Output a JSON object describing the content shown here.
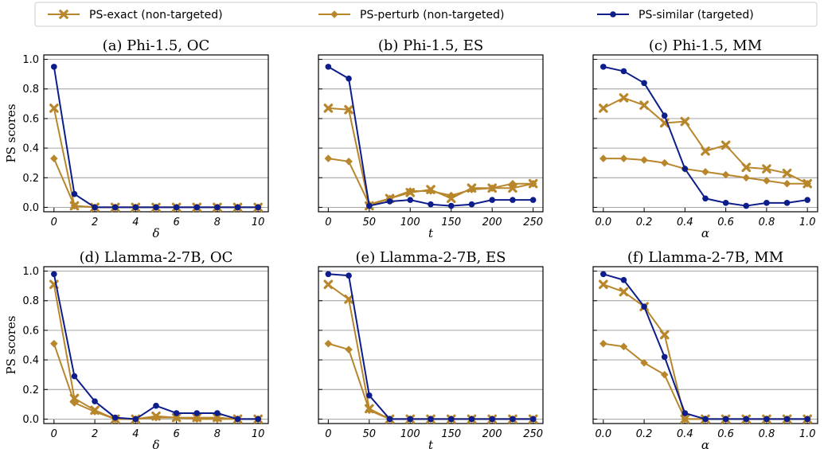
{
  "legend": [
    {
      "label": "PS-exact (non-targeted)",
      "color": "#b8862b",
      "marker": "x"
    },
    {
      "label": "PS-perturb (non-targeted)",
      "color": "#b8862b",
      "marker": "diamond"
    },
    {
      "label": "PS-similar (targeted)",
      "color": "#0d1d8a",
      "marker": "circle"
    }
  ],
  "colors": {
    "exact": "#b8862b",
    "perturb": "#b8862b",
    "similar": "#0d1d8a",
    "grid": "#999999"
  },
  "chart_data": [
    {
      "type": "line",
      "title": "(a) Phi-1.5, OC",
      "xlabel": "δ",
      "ylabel": "PS scores",
      "x": [
        0,
        1,
        2,
        3,
        4,
        5,
        6,
        7,
        8,
        9,
        10
      ],
      "xticks": [
        0,
        2,
        4,
        6,
        8,
        10
      ],
      "xtick_labels": [
        "0",
        "2",
        "4",
        "6",
        "8",
        "10"
      ],
      "xlim": [
        -0.5,
        10.5
      ],
      "ylim": [
        0,
        1.0
      ],
      "yticks": [
        0.0,
        0.2,
        0.4,
        0.6,
        0.8,
        1.0
      ],
      "ytick_labels": [
        "0.0",
        "0.2",
        "0.4",
        "0.6",
        "0.8",
        "1.0"
      ],
      "grid": "horizontal",
      "series": [
        {
          "name": "PS-exact (non-targeted)",
          "key": "exact",
          "values": [
            0.67,
            0.01,
            0.0,
            0.0,
            0.0,
            0.0,
            0.0,
            0.0,
            0.0,
            0.0,
            0.0
          ]
        },
        {
          "name": "PS-perturb (non-targeted)",
          "key": "perturb",
          "values": [
            0.33,
            0.01,
            0.0,
            0.0,
            0.0,
            0.0,
            0.0,
            0.0,
            0.0,
            0.0,
            0.0
          ]
        },
        {
          "name": "PS-similar (targeted)",
          "key": "similar",
          "values": [
            0.95,
            0.09,
            0.0,
            0.0,
            0.0,
            0.0,
            0.0,
            0.0,
            0.0,
            0.0,
            0.0
          ]
        }
      ]
    },
    {
      "type": "line",
      "title": "(b) Phi-1.5, ES",
      "xlabel": "t",
      "ylabel": "",
      "x": [
        0,
        25,
        50,
        75,
        100,
        125,
        150,
        175,
        200,
        225,
        250
      ],
      "xticks": [
        0,
        50,
        100,
        150,
        200,
        250
      ],
      "xtick_labels": [
        "0",
        "50",
        "100",
        "150",
        "200",
        "250"
      ],
      "xlim": [
        -12,
        262
      ],
      "ylim": [
        0,
        1.0
      ],
      "yticks": [
        0.0,
        0.2,
        0.4,
        0.6,
        0.8,
        1.0
      ],
      "ytick_labels": [],
      "grid": "horizontal",
      "series": [
        {
          "name": "PS-exact (non-targeted)",
          "key": "exact",
          "values": [
            0.67,
            0.66,
            0.01,
            0.06,
            0.1,
            0.12,
            0.06,
            0.13,
            0.13,
            0.13,
            0.16
          ]
        },
        {
          "name": "PS-perturb (non-targeted)",
          "key": "perturb",
          "values": [
            0.33,
            0.31,
            0.02,
            0.06,
            0.11,
            0.11,
            0.08,
            0.12,
            0.13,
            0.16,
            0.16
          ]
        },
        {
          "name": "PS-similar (targeted)",
          "key": "similar",
          "values": [
            0.95,
            0.87,
            0.01,
            0.04,
            0.05,
            0.02,
            0.01,
            0.02,
            0.05,
            0.05,
            0.05
          ]
        }
      ]
    },
    {
      "type": "line",
      "title": "(c) Phi-1.5, MM",
      "xlabel": "α",
      "ylabel": "",
      "x": [
        0.0,
        0.1,
        0.2,
        0.3,
        0.4,
        0.5,
        0.6,
        0.7,
        0.8,
        0.9,
        1.0
      ],
      "xticks": [
        0.0,
        0.2,
        0.4,
        0.6,
        0.8,
        1.0
      ],
      "xtick_labels": [
        "0.0",
        "0.2",
        "0.4",
        "0.6",
        "0.8",
        "1.0"
      ],
      "xlim": [
        -0.05,
        1.05
      ],
      "ylim": [
        0,
        1.0
      ],
      "yticks": [
        0.0,
        0.2,
        0.4,
        0.6,
        0.8,
        1.0
      ],
      "ytick_labels": [],
      "grid": "horizontal",
      "series": [
        {
          "name": "PS-exact (non-targeted)",
          "key": "exact",
          "values": [
            0.67,
            0.74,
            0.69,
            0.57,
            0.58,
            0.38,
            0.42,
            0.27,
            0.26,
            0.23,
            0.16
          ]
        },
        {
          "name": "PS-perturb (non-targeted)",
          "key": "perturb",
          "values": [
            0.33,
            0.33,
            0.32,
            0.3,
            0.26,
            0.24,
            0.22,
            0.2,
            0.18,
            0.16,
            0.16
          ]
        },
        {
          "name": "PS-similar (targeted)",
          "key": "similar",
          "values": [
            0.95,
            0.92,
            0.84,
            0.62,
            0.26,
            0.06,
            0.03,
            0.01,
            0.03,
            0.03,
            0.05
          ]
        }
      ]
    },
    {
      "type": "line",
      "title": "(d) Llamma-2-7B, OC",
      "xlabel": "δ",
      "ylabel": "PS scores",
      "x": [
        0,
        1,
        2,
        3,
        4,
        5,
        6,
        7,
        8,
        9,
        10
      ],
      "xticks": [
        0,
        2,
        4,
        6,
        8,
        10
      ],
      "xtick_labels": [
        "0",
        "2",
        "4",
        "6",
        "8",
        "10"
      ],
      "xlim": [
        -0.5,
        10.5
      ],
      "ylim": [
        0,
        1.0
      ],
      "yticks": [
        0.0,
        0.2,
        0.4,
        0.6,
        0.8,
        1.0
      ],
      "ytick_labels": [
        "0.0",
        "0.2",
        "0.4",
        "0.6",
        "0.8",
        "1.0"
      ],
      "grid": "horizontal",
      "series": [
        {
          "name": "PS-exact (non-targeted)",
          "key": "exact",
          "values": [
            0.91,
            0.14,
            0.06,
            0.0,
            0.0,
            0.02,
            0.01,
            0.01,
            0.01,
            0.0,
            0.0
          ]
        },
        {
          "name": "PS-perturb (non-targeted)",
          "key": "perturb",
          "values": [
            0.51,
            0.11,
            0.05,
            0.0,
            0.0,
            0.01,
            0.01,
            0.0,
            0.0,
            0.0,
            0.0
          ]
        },
        {
          "name": "PS-similar (targeted)",
          "key": "similar",
          "values": [
            0.98,
            0.29,
            0.12,
            0.01,
            0.0,
            0.09,
            0.04,
            0.04,
            0.04,
            0.0,
            0.0
          ]
        }
      ]
    },
    {
      "type": "line",
      "title": "(e) Llamma-2-7B, ES",
      "xlabel": "t",
      "ylabel": "",
      "x": [
        0,
        25,
        50,
        75,
        100,
        125,
        150,
        175,
        200,
        225,
        250
      ],
      "xticks": [
        0,
        50,
        100,
        150,
        200,
        250
      ],
      "xtick_labels": [
        "0",
        "50",
        "100",
        "150",
        "200",
        "250"
      ],
      "xlim": [
        -12,
        262
      ],
      "ylim": [
        0,
        1.0
      ],
      "yticks": [
        0.0,
        0.2,
        0.4,
        0.6,
        0.8,
        1.0
      ],
      "ytick_labels": [],
      "grid": "horizontal",
      "series": [
        {
          "name": "PS-exact (non-targeted)",
          "key": "exact",
          "values": [
            0.91,
            0.81,
            0.07,
            0.0,
            0.0,
            0.0,
            0.0,
            0.0,
            0.0,
            0.0,
            0.0
          ]
        },
        {
          "name": "PS-perturb (non-targeted)",
          "key": "perturb",
          "values": [
            0.51,
            0.47,
            0.06,
            0.0,
            0.0,
            0.0,
            0.0,
            0.0,
            0.0,
            0.0,
            0.0
          ]
        },
        {
          "name": "PS-similar (targeted)",
          "key": "similar",
          "values": [
            0.98,
            0.97,
            0.16,
            0.0,
            0.0,
            0.0,
            0.0,
            0.0,
            0.0,
            0.0,
            0.0
          ]
        }
      ]
    },
    {
      "type": "line",
      "title": "(f) Llamma-2-7B, MM",
      "xlabel": "α",
      "ylabel": "",
      "x": [
        0.0,
        0.1,
        0.2,
        0.3,
        0.4,
        0.5,
        0.6,
        0.7,
        0.8,
        0.9,
        1.0
      ],
      "xticks": [
        0.0,
        0.2,
        0.4,
        0.6,
        0.8,
        1.0
      ],
      "xtick_labels": [
        "0.0",
        "0.2",
        "0.4",
        "0.6",
        "0.8",
        "1.0"
      ],
      "xlim": [
        -0.05,
        1.05
      ],
      "ylim": [
        0,
        1.0
      ],
      "yticks": [
        0.0,
        0.2,
        0.4,
        0.6,
        0.8,
        1.0
      ],
      "ytick_labels": [],
      "grid": "horizontal",
      "series": [
        {
          "name": "PS-exact (non-targeted)",
          "key": "exact",
          "values": [
            0.91,
            0.86,
            0.76,
            0.57,
            0.0,
            0.0,
            0.0,
            0.0,
            0.0,
            0.0,
            0.0
          ]
        },
        {
          "name": "PS-perturb (non-targeted)",
          "key": "perturb",
          "values": [
            0.51,
            0.49,
            0.38,
            0.3,
            0.0,
            0.0,
            0.0,
            0.0,
            0.0,
            0.0,
            0.0
          ]
        },
        {
          "name": "PS-similar (targeted)",
          "key": "similar",
          "values": [
            0.98,
            0.94,
            0.76,
            0.42,
            0.04,
            0.0,
            0.0,
            0.0,
            0.0,
            0.0,
            0.0
          ]
        }
      ]
    }
  ]
}
